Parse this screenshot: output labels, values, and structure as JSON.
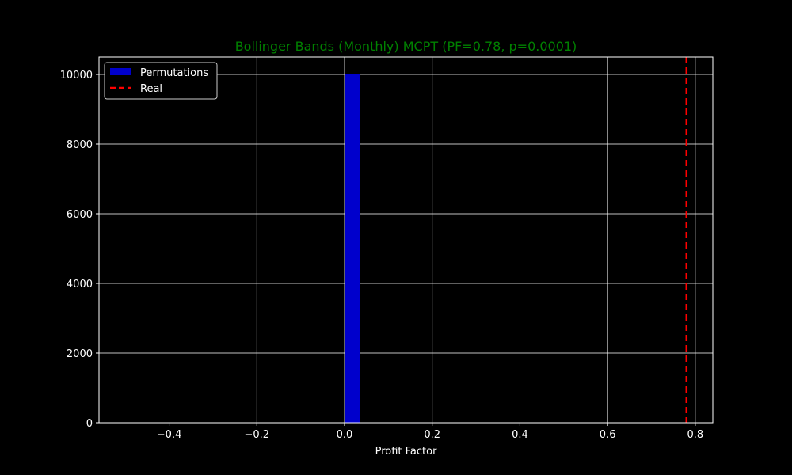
{
  "chart_data": {
    "type": "bar",
    "title": "Bollinger Bands (Monthly) MCPT (PF=0.78, p=0.0001)",
    "xlabel": "Profit Factor",
    "ylabel": "",
    "xlim": [
      -0.56,
      0.84
    ],
    "ylim": [
      0,
      10500
    ],
    "xticks": [
      -0.4,
      -0.2,
      0.0,
      0.2,
      0.4,
      0.6,
      0.8
    ],
    "xtick_labels": [
      "−0.4",
      "−0.2",
      "0.0",
      "0.2",
      "0.4",
      "0.6",
      "0.8"
    ],
    "yticks": [
      0,
      2000,
      4000,
      6000,
      8000,
      10000
    ],
    "ytick_labels": [
      "0",
      "2000",
      "4000",
      "6000",
      "8000",
      "10000"
    ],
    "grid": true,
    "legend_position": "top-left",
    "series": [
      {
        "name": "Permutations",
        "kind": "histogram",
        "color": "#0000cc",
        "bins": [
          {
            "x0": 0.0,
            "x1": 0.035,
            "count": 10000
          }
        ]
      },
      {
        "name": "Real",
        "kind": "vline",
        "color": "#ff0000",
        "style": "dashed",
        "x": 0.78
      }
    ]
  },
  "colors": {
    "background": "#000000",
    "grid": "#ffffff",
    "title": "#008000",
    "text": "#ffffff"
  }
}
